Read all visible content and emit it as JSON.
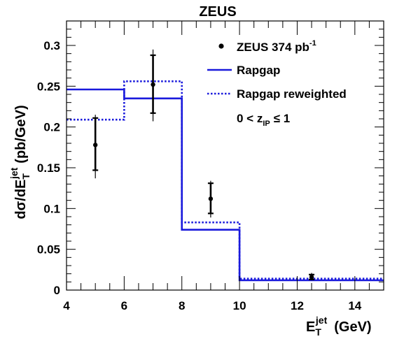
{
  "chart_data": {
    "type": "line",
    "title": "ZEUS",
    "xlabel": {
      "main": "E",
      "sub": "T",
      "sup": "jet",
      "unit": "(GeV)"
    },
    "ylabel": {
      "main": "dσ/dE",
      "sub": "T",
      "sup": "jet",
      "unit": "(pb/GeV)"
    },
    "xlim": [
      4,
      15
    ],
    "ylim": [
      0,
      0.33
    ],
    "x_ticks": [
      4,
      6,
      8,
      10,
      12,
      14
    ],
    "y_ticks": [
      0,
      0.05,
      0.1,
      0.15,
      0.2,
      0.25,
      0.3
    ],
    "y_tick_labels": [
      "0",
      "0.05",
      "0.1",
      "0.15",
      "0.2",
      "0.25",
      "0.3"
    ],
    "bin_edges": [
      4,
      6,
      8,
      10,
      15
    ],
    "series": [
      {
        "name": "ZEUS 374 pb",
        "name_sup": "-1",
        "kind": "points",
        "color": "#000000",
        "points": [
          {
            "x": 5,
            "y": 0.178,
            "stat": [
              0.147,
              0.211
            ],
            "total": [
              0.137,
              0.215
            ]
          },
          {
            "x": 7,
            "y": 0.252,
            "stat": [
              0.217,
              0.288
            ],
            "total": [
              0.207,
              0.295
            ]
          },
          {
            "x": 9,
            "y": 0.112,
            "stat": [
              0.094,
              0.131
            ],
            "total": [
              0.089,
              0.134
            ]
          },
          {
            "x": 12.5,
            "y": 0.016,
            "stat": [
              0.013,
              0.019
            ],
            "total": [
              0.012,
              0.021
            ]
          }
        ]
      },
      {
        "name": "Rapgap",
        "kind": "histogram",
        "style": "solid",
        "color": "#1a1adc",
        "values": [
          0.246,
          0.235,
          0.074,
          0.012
        ]
      },
      {
        "name": "Rapgap reweighted",
        "kind": "histogram",
        "style": "dotted",
        "color": "#1a1adc",
        "values": [
          0.209,
          0.256,
          0.083,
          0.014
        ]
      }
    ],
    "annotation": {
      "prefix": "0 < z",
      "sub": "IP",
      "suffix": "≤ 1"
    },
    "legend_position": "top-right",
    "grid": false
  }
}
